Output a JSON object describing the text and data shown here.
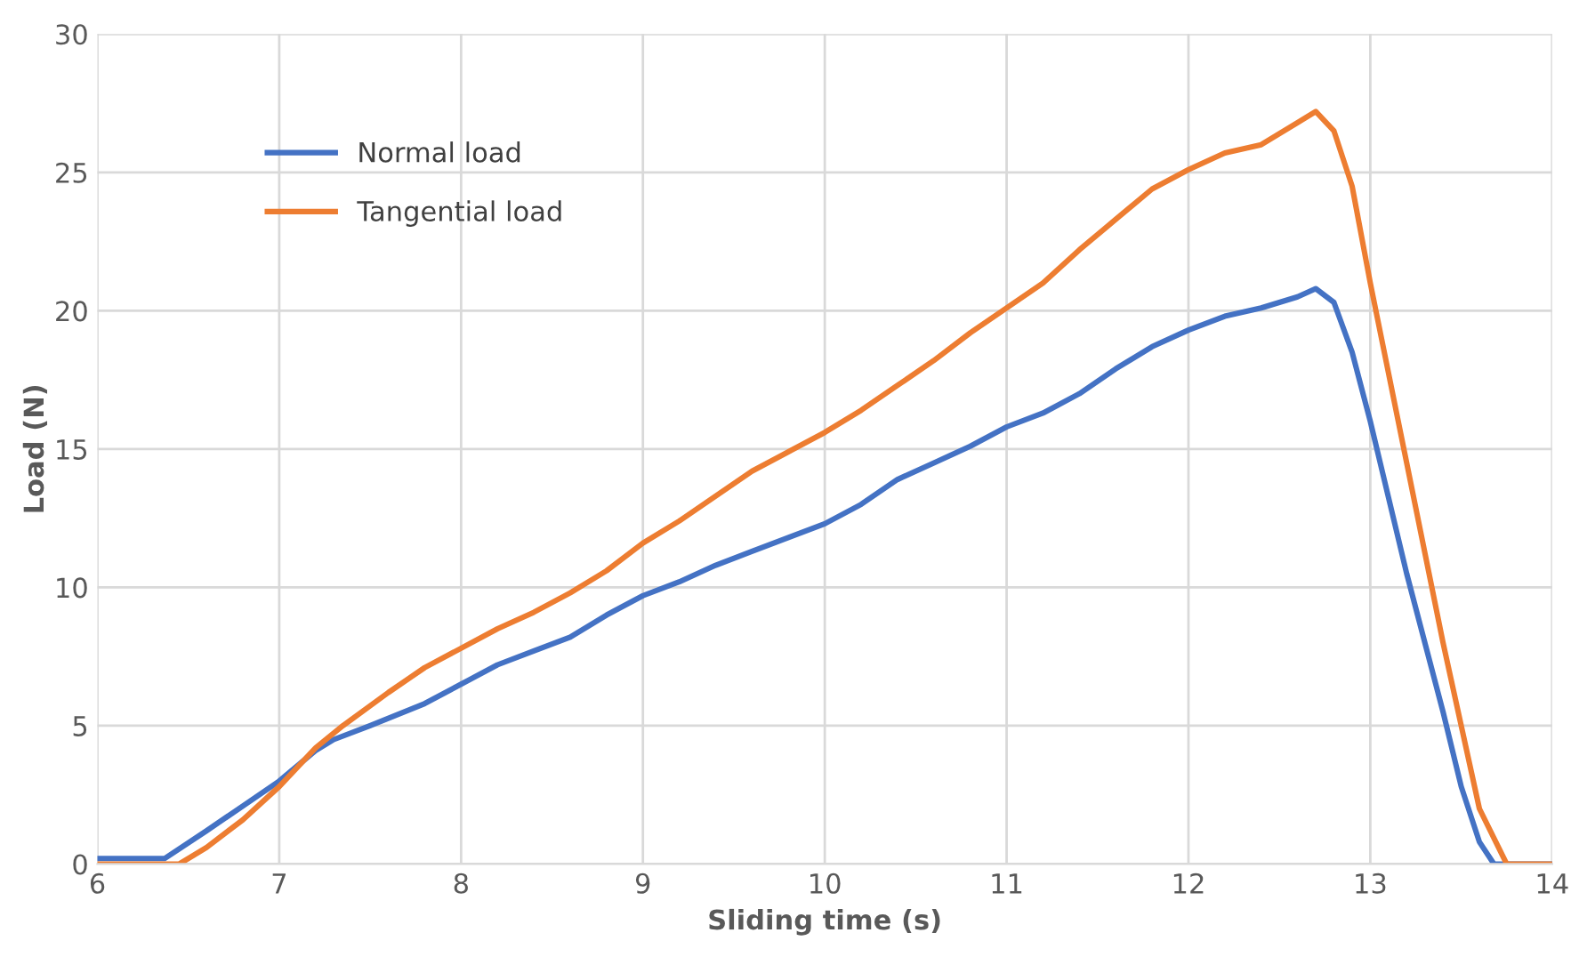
{
  "chart_data": {
    "type": "line",
    "xlabel": "Sliding time (s)",
    "ylabel": "Load (N)",
    "xlim": [
      6,
      14
    ],
    "ylim": [
      0,
      30
    ],
    "xticks": [
      6,
      7,
      8,
      9,
      10,
      11,
      12,
      13,
      14
    ],
    "yticks": [
      0,
      5,
      10,
      15,
      20,
      25,
      30
    ],
    "grid": true,
    "legend": "top left",
    "marker": "none",
    "line_style": "solid",
    "series": [
      {
        "name": "Normal load",
        "color": "#4472c4",
        "x": [
          6,
          6.37,
          6.6,
          6.8,
          7.0,
          7.2,
          7.3,
          7.5,
          7.8,
          8.0,
          8.2,
          8.4,
          8.6,
          8.8,
          9.0,
          9.2,
          9.4,
          9.6,
          9.8,
          10.0,
          10.2,
          10.4,
          10.6,
          10.8,
          11.0,
          11.2,
          11.4,
          11.6,
          11.8,
          12.0,
          12.2,
          12.4,
          12.6,
          12.7,
          12.8,
          12.9,
          13.0,
          13.2,
          13.4,
          13.5,
          13.6,
          13.68,
          14
        ],
        "values": [
          0.2,
          0.2,
          1.2,
          2.1,
          3.0,
          4.1,
          4.5,
          5.0,
          5.8,
          6.5,
          7.2,
          7.7,
          8.2,
          9.0,
          9.7,
          10.2,
          10.8,
          11.3,
          11.8,
          12.3,
          13.0,
          13.9,
          14.5,
          15.1,
          15.8,
          16.3,
          17.0,
          17.9,
          18.7,
          19.3,
          19.8,
          20.1,
          20.5,
          20.8,
          20.3,
          18.5,
          16.0,
          10.5,
          5.5,
          2.8,
          0.8,
          0,
          0
        ]
      },
      {
        "name": "Tangential load",
        "color": "#ed7d31",
        "x": [
          6,
          6.45,
          6.6,
          6.8,
          7.0,
          7.2,
          7.35,
          7.6,
          7.8,
          8.0,
          8.2,
          8.4,
          8.6,
          8.8,
          9.0,
          9.2,
          9.4,
          9.6,
          9.8,
          10.0,
          10.2,
          10.4,
          10.6,
          10.8,
          11.0,
          11.2,
          11.4,
          11.6,
          11.8,
          12.0,
          12.2,
          12.4,
          12.6,
          12.7,
          12.8,
          12.9,
          13.0,
          13.2,
          13.4,
          13.6,
          13.75,
          14
        ],
        "values": [
          0,
          0,
          0.6,
          1.6,
          2.8,
          4.2,
          5.0,
          6.2,
          7.1,
          7.8,
          8.5,
          9.1,
          9.8,
          10.6,
          11.6,
          12.4,
          13.3,
          14.2,
          14.9,
          15.6,
          16.4,
          17.3,
          18.2,
          19.2,
          20.1,
          21.0,
          22.2,
          23.3,
          24.4,
          25.1,
          25.7,
          26.0,
          26.8,
          27.2,
          26.5,
          24.5,
          21.0,
          14.5,
          8.0,
          2.0,
          0,
          0
        ]
      }
    ]
  }
}
